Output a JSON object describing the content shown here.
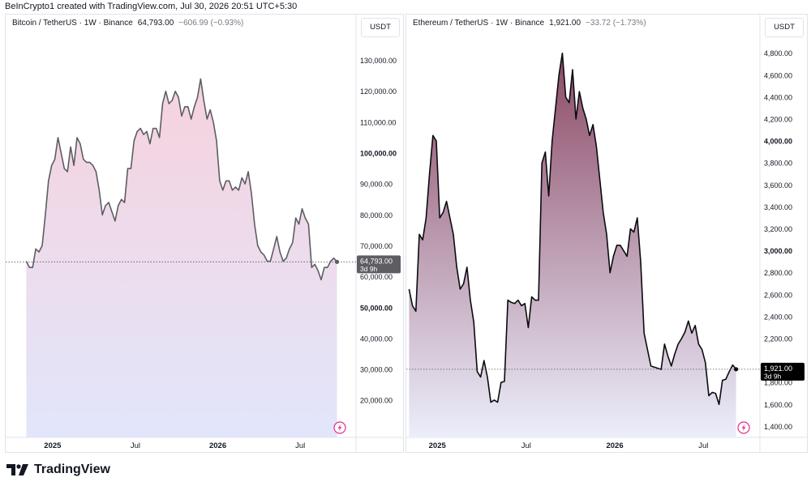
{
  "header": {
    "text": "BeInCrypto1 created with TradingView.com, Jul 30, 2026 20:51 UTC+5:30"
  },
  "footer": {
    "brand": "TradingView",
    "logo_icon": "tradingview-logo-icon"
  },
  "chart_data": [
    {
      "type": "area",
      "title": "Bitcoin / TetherUS · 1W · Binance",
      "last_value": "64,793.00",
      "change": "−606.99 (−0.93%)",
      "unit": "USDT",
      "countdown": "3d 9h",
      "line_color": "#5d5d63",
      "fill_top": "#f6d2de",
      "fill_bottom": "#e2e6fb",
      "ylim": [
        8000,
        138000
      ],
      "y_ticks": [
        {
          "v": 20000,
          "label": "20,000.00"
        },
        {
          "v": 30000,
          "label": "30,000.00"
        },
        {
          "v": 40000,
          "label": "40,000.00"
        },
        {
          "v": 50000,
          "label": "50,000.00",
          "bold": true
        },
        {
          "v": 60000,
          "label": "60,000.00"
        },
        {
          "v": 70000,
          "label": "70,000.00"
        },
        {
          "v": 80000,
          "label": "80,000.00"
        },
        {
          "v": 90000,
          "label": "90,000.00"
        },
        {
          "v": 100000,
          "label": "100,000.00",
          "bold": true
        },
        {
          "v": 110000,
          "label": "110,000.00"
        },
        {
          "v": 120000,
          "label": "120,000.00"
        },
        {
          "v": 130000,
          "label": "130,000.00"
        }
      ],
      "x_ticks": [
        {
          "t": 8.3,
          "label": "2025",
          "bold": true
        },
        {
          "t": 34.4,
          "label": "Jul"
        },
        {
          "t": 60.4,
          "label": "2026",
          "bold": true
        },
        {
          "t": 86.4,
          "label": "Jul"
        }
      ],
      "xlim": [
        -6.5,
        104
      ],
      "values": [
        65000,
        63000,
        63000,
        69000,
        68000,
        70000,
        80000,
        91000,
        96000,
        98000,
        105000,
        100000,
        95000,
        94000,
        102000,
        96000,
        105000,
        103000,
        98000,
        97000,
        97000,
        96000,
        94000,
        88000,
        80000,
        83000,
        84000,
        81000,
        78000,
        83000,
        85000,
        84000,
        95000,
        95000,
        104000,
        107000,
        108000,
        106000,
        107000,
        103000,
        108000,
        108000,
        105000,
        116000,
        120000,
        116000,
        117000,
        120000,
        118000,
        112000,
        115000,
        115000,
        111000,
        115000,
        118000,
        124000,
        117000,
        111000,
        114000,
        110000,
        104000,
        91000,
        88000,
        91000,
        91000,
        88000,
        89000,
        88000,
        92000,
        90000,
        94000,
        87000,
        77000,
        70000,
        68000,
        67000,
        65000,
        65000,
        69000,
        73000,
        68000,
        65000,
        66000,
        69000,
        71000,
        79000,
        77000,
        82000,
        79000,
        77000,
        63000,
        64000,
        62000,
        59000,
        63000,
        63000,
        65000,
        66000,
        64793
      ]
    },
    {
      "type": "area",
      "title": "Ethereum / TetherUS · 1W · Binance",
      "last_value": "1,921.00",
      "change": "−33.72 (−1.73%)",
      "unit": "USDT",
      "countdown": "3d 9h",
      "line_color": "#0b0b10",
      "fill_top": "#8c4a66",
      "fill_bottom": "#eceefb",
      "ylim": [
        1300,
        4960
      ],
      "y_ticks": [
        {
          "v": 1400,
          "label": "1,400.00"
        },
        {
          "v": 1600,
          "label": "1,600.00"
        },
        {
          "v": 1800,
          "label": "1,800.00"
        },
        {
          "v": 2000,
          "label": "2,000.00",
          "bold": true
        },
        {
          "v": 2200,
          "label": "2,200.00"
        },
        {
          "v": 2400,
          "label": "2,400.00"
        },
        {
          "v": 2600,
          "label": "2,600.00"
        },
        {
          "v": 2800,
          "label": "2,800.00"
        },
        {
          "v": 3000,
          "label": "3,000.00",
          "bold": true
        },
        {
          "v": 3200,
          "label": "3,200.00"
        },
        {
          "v": 3400,
          "label": "3,400.00"
        },
        {
          "v": 3600,
          "label": "3,600.00"
        },
        {
          "v": 3800,
          "label": "3,800.00"
        },
        {
          "v": 4000,
          "label": "4,000.00",
          "bold": true
        },
        {
          "v": 4200,
          "label": "4,200.00"
        },
        {
          "v": 4400,
          "label": "4,400.00"
        },
        {
          "v": 4600,
          "label": "4,600.00"
        },
        {
          "v": 4800,
          "label": "4,800.00"
        }
      ],
      "x_ticks": [
        {
          "t": 8.3,
          "label": "2025",
          "bold": true
        },
        {
          "t": 34.4,
          "label": "Jul"
        },
        {
          "t": 60.4,
          "label": "2026",
          "bold": true
        },
        {
          "t": 86.4,
          "label": "Jul"
        }
      ],
      "xlim": [
        -0.8,
        103
      ],
      "values": [
        2650,
        2500,
        2450,
        3150,
        3100,
        3300,
        3700,
        4050,
        4000,
        3300,
        3350,
        3450,
        3300,
        3150,
        2850,
        2650,
        2700,
        2850,
        2550,
        2350,
        1900,
        1850,
        2000,
        1850,
        1620,
        1640,
        1620,
        1800,
        1810,
        2550,
        2530,
        2520,
        2550,
        2500,
        2520,
        2300,
        2580,
        2550,
        2550,
        3800,
        3900,
        3500,
        4000,
        4300,
        4600,
        4800,
        4400,
        4350,
        4650,
        4200,
        4450,
        4300,
        4200,
        4050,
        4150,
        3950,
        3650,
        3350,
        3150,
        2800,
        2950,
        3050,
        3050,
        3000,
        2950,
        3200,
        3170,
        3300,
        2900,
        2250,
        2100,
        1950,
        1940,
        1930,
        1920,
        2150,
        2040,
        1950,
        2060,
        2150,
        2200,
        2260,
        2360,
        2250,
        2320,
        2150,
        2100,
        1980,
        1680,
        1710,
        1700,
        1600,
        1820,
        1830,
        1900,
        1960,
        1921
      ]
    }
  ]
}
